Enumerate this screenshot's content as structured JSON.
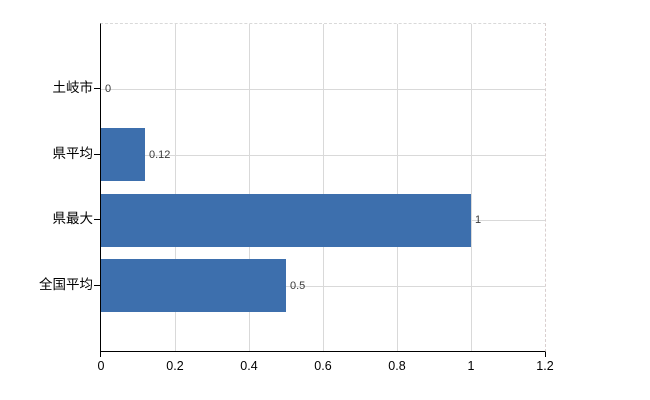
{
  "chart_data": {
    "type": "bar",
    "orientation": "horizontal",
    "title": "",
    "xlabel": "",
    "ylabel": "",
    "categories": [
      "土岐市",
      "県平均",
      "県最大",
      "全国平均"
    ],
    "values": [
      0,
      0.12,
      1,
      0.5
    ],
    "value_labels": [
      "0",
      "0.12",
      "1",
      "0.5"
    ],
    "x_ticks": [
      0,
      0.2,
      0.4,
      0.6,
      0.8,
      1,
      1.2
    ],
    "x_tick_labels": [
      "0",
      "0.2",
      "0.4",
      "0.6",
      "0.8",
      "1",
      "1.2"
    ],
    "xlim": [
      0,
      1.2
    ],
    "grid": true,
    "legend": false,
    "colors": {
      "bar_fill": "#3d6fad",
      "gridline": "#d9d9d9",
      "axis": "#000000",
      "value_label": "#3a3a3a",
      "tick_label": "#000000",
      "plot_border_dashed": "#d9cfcf",
      "background": "#ffffff"
    }
  }
}
